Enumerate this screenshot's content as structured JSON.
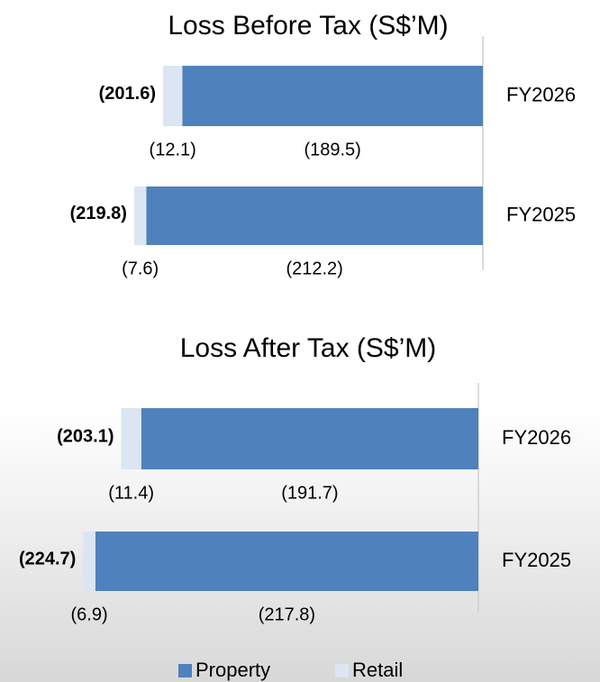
{
  "chart_data": [
    {
      "type": "bar",
      "orientation": "horizontal",
      "stacked": true,
      "title": "Loss Before Tax (S$’M)",
      "categories": [
        "FY2026",
        "FY2025"
      ],
      "series": [
        {
          "name": "Property",
          "color": "#4f81bd",
          "values": [
            -189.5,
            -212.2
          ],
          "value_labels": [
            "(189.5)",
            "(212.2)"
          ]
        },
        {
          "name": "Retail",
          "color": "#dce6f2",
          "values": [
            -12.1,
            -7.6
          ],
          "value_labels": [
            "(12.1)",
            "(7.6)"
          ]
        }
      ],
      "totals": [
        -201.6,
        -219.8
      ],
      "total_labels": [
        "(201.6)",
        "(219.8)"
      ],
      "xlim": [
        -230,
        0
      ]
    },
    {
      "type": "bar",
      "orientation": "horizontal",
      "stacked": true,
      "title": "Loss After Tax (S$’M)",
      "categories": [
        "FY2026",
        "FY2025"
      ],
      "series": [
        {
          "name": "Property",
          "color": "#4f81bd",
          "values": [
            -191.7,
            -217.8
          ],
          "value_labels": [
            "(191.7)",
            "(217.8)"
          ]
        },
        {
          "name": "Retail",
          "color": "#dce6f2",
          "values": [
            -11.4,
            -6.9
          ],
          "value_labels": [
            "(11.4)",
            "(6.9)"
          ]
        }
      ],
      "totals": [
        -203.1,
        -224.7
      ],
      "total_labels": [
        "(203.1)",
        "(224.7)"
      ],
      "xlim": [
        -230,
        0
      ]
    }
  ]
}
